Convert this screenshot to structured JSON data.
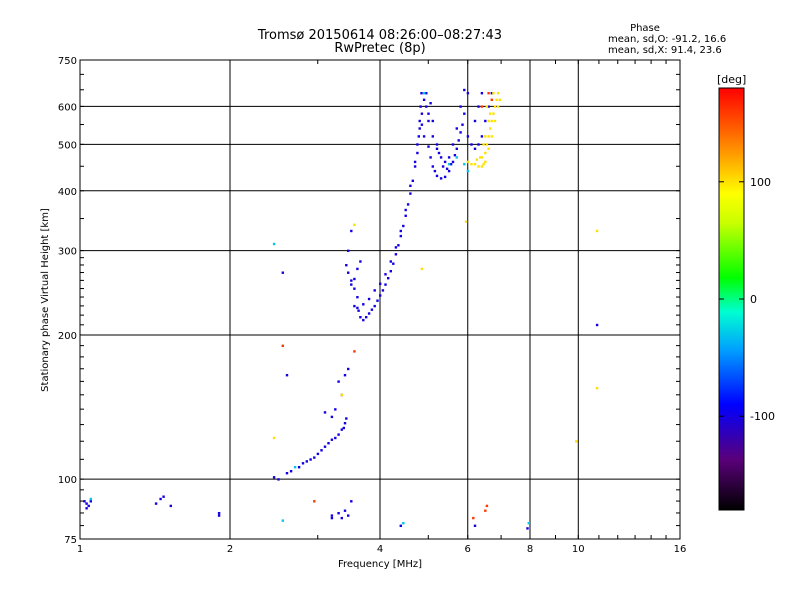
{
  "chart_data": {
    "type": "scatter",
    "title": "Tromsø 20150614 08:26:00–08:27:43",
    "subtitle": "RwPretec (8p)",
    "xlabel": "Frequency [MHz]",
    "ylabel": "Stationary phase Virtual Height [km]",
    "x_scale": "log",
    "y_scale": "log",
    "xlim": [
      1,
      16
    ],
    "ylim": [
      75,
      750
    ],
    "x_ticks": [
      1,
      2,
      4,
      6,
      8,
      10,
      16
    ],
    "x_tick_labels": [
      "1",
      "2",
      "4",
      "6",
      "8",
      "10",
      "16"
    ],
    "y_ticks": [
      75,
      100,
      200,
      300,
      400,
      500,
      600,
      750
    ],
    "y_tick_labels": [
      "75",
      "100",
      "200",
      "300",
      "400",
      "500",
      "600",
      "750"
    ],
    "grid": true,
    "phase_info": {
      "heading": "Phase",
      "o_line": "mean, sd,O: -91.2, 16.6",
      "x_line": "mean, sd,X:  91.4, 23.6"
    },
    "colorbar": {
      "label": "[deg]",
      "range": [
        -180,
        180
      ],
      "ticks": [
        100,
        0,
        -100
      ],
      "tick_labels": [
        "100",
        "0",
        "-100"
      ]
    },
    "series": [
      {
        "name": "",
        "color_deg": -100,
        "points": [
          [
            1.02,
            90
          ],
          [
            1.03,
            89
          ],
          [
            1.04,
            88
          ],
          [
            1.05,
            90
          ],
          [
            1.03,
            87
          ],
          [
            1.42,
            89
          ],
          [
            1.45,
            91
          ],
          [
            1.47,
            92
          ],
          [
            1.52,
            88
          ],
          [
            1.9,
            85
          ],
          [
            1.9,
            84
          ],
          [
            2.45,
            101
          ],
          [
            2.5,
            100
          ],
          [
            2.6,
            103
          ],
          [
            2.65,
            104
          ],
          [
            2.75,
            106
          ],
          [
            2.8,
            108
          ],
          [
            2.85,
            109
          ],
          [
            2.9,
            110
          ],
          [
            2.95,
            111
          ],
          [
            3.0,
            113
          ],
          [
            3.05,
            115
          ],
          [
            3.1,
            117
          ],
          [
            3.15,
            119
          ],
          [
            3.2,
            121
          ],
          [
            3.25,
            122
          ],
          [
            3.3,
            124
          ],
          [
            3.35,
            127
          ],
          [
            3.38,
            128
          ],
          [
            3.4,
            131
          ],
          [
            3.42,
            134
          ],
          [
            3.35,
            150
          ],
          [
            3.3,
            160
          ],
          [
            3.4,
            165
          ],
          [
            3.45,
            170
          ],
          [
            3.25,
            140
          ],
          [
            3.2,
            135
          ],
          [
            3.1,
            138
          ],
          [
            2.6,
            165
          ],
          [
            3.2,
            84
          ],
          [
            3.3,
            85
          ],
          [
            3.35,
            83
          ],
          [
            3.4,
            86
          ],
          [
            3.45,
            84
          ],
          [
            3.5,
            90
          ],
          [
            3.2,
            83
          ],
          [
            2.55,
            270
          ],
          [
            3.5,
            330
          ],
          [
            3.45,
            300
          ],
          [
            3.42,
            280
          ],
          [
            3.45,
            270
          ],
          [
            3.5,
            260
          ],
          [
            3.55,
            250
          ],
          [
            3.6,
            240
          ],
          [
            3.62,
            225
          ],
          [
            3.65,
            218
          ],
          [
            3.7,
            215
          ],
          [
            3.75,
            218
          ],
          [
            3.8,
            222
          ],
          [
            3.85,
            226
          ],
          [
            3.9,
            230
          ],
          [
            3.95,
            236
          ],
          [
            4.0,
            242
          ],
          [
            4.05,
            248
          ],
          [
            4.1,
            255
          ],
          [
            4.15,
            263
          ],
          [
            4.2,
            272
          ],
          [
            4.25,
            282
          ],
          [
            4.3,
            295
          ],
          [
            4.35,
            308
          ],
          [
            4.4,
            322
          ],
          [
            4.45,
            338
          ],
          [
            4.5,
            355
          ],
          [
            4.55,
            375
          ],
          [
            4.6,
            395
          ],
          [
            4.65,
            420
          ],
          [
            4.7,
            450
          ],
          [
            4.75,
            480
          ],
          [
            4.78,
            520
          ],
          [
            4.8,
            560
          ],
          [
            4.82,
            600
          ],
          [
            4.84,
            640
          ],
          [
            3.5,
            255
          ],
          [
            3.55,
            262
          ],
          [
            3.6,
            275
          ],
          [
            3.65,
            285
          ],
          [
            3.55,
            230
          ],
          [
            3.6,
            228
          ],
          [
            3.7,
            232
          ],
          [
            3.8,
            238
          ],
          [
            3.9,
            248
          ],
          [
            4.0,
            256
          ],
          [
            4.1,
            268
          ],
          [
            4.2,
            285
          ],
          [
            4.3,
            305
          ],
          [
            4.4,
            330
          ],
          [
            4.5,
            365
          ],
          [
            4.6,
            410
          ],
          [
            4.7,
            460
          ],
          [
            4.75,
            500
          ],
          [
            4.8,
            540
          ],
          [
            4.85,
            580
          ],
          [
            4.9,
            620
          ],
          [
            4.95,
            640
          ],
          [
            4.85,
            550
          ],
          [
            4.9,
            520
          ],
          [
            5.0,
            495
          ],
          [
            5.05,
            470
          ],
          [
            5.1,
            450
          ],
          [
            5.15,
            440
          ],
          [
            5.2,
            430
          ],
          [
            5.3,
            425
          ],
          [
            5.4,
            428
          ],
          [
            5.5,
            440
          ],
          [
            5.6,
            460
          ],
          [
            5.7,
            490
          ],
          [
            5.8,
            530
          ],
          [
            5.9,
            580
          ],
          [
            6.0,
            640
          ],
          [
            5.0,
            560
          ],
          [
            5.1,
            520
          ],
          [
            5.2,
            490
          ],
          [
            5.3,
            470
          ],
          [
            5.4,
            460
          ],
          [
            5.5,
            470
          ],
          [
            5.6,
            500
          ],
          [
            5.7,
            540
          ],
          [
            5.8,
            600
          ],
          [
            5.9,
            650
          ],
          [
            4.95,
            600
          ],
          [
            5.0,
            580
          ],
          [
            5.05,
            610
          ],
          [
            5.1,
            560
          ],
          [
            5.2,
            500
          ],
          [
            5.25,
            480
          ],
          [
            5.35,
            450
          ],
          [
            5.45,
            445
          ],
          [
            5.55,
            455
          ],
          [
            5.65,
            475
          ],
          [
            5.75,
            510
          ],
          [
            5.85,
            550
          ],
          [
            6.0,
            520
          ],
          [
            6.1,
            500
          ],
          [
            6.2,
            490
          ],
          [
            6.3,
            500
          ],
          [
            6.4,
            520
          ],
          [
            6.5,
            560
          ],
          [
            6.6,
            600
          ],
          [
            6.7,
            640
          ],
          [
            6.2,
            560
          ],
          [
            6.3,
            600
          ],
          [
            6.4,
            640
          ],
          [
            4.4,
            80
          ],
          [
            6.2,
            80
          ],
          [
            7.9,
            79
          ],
          [
            10.9,
            210
          ]
        ]
      },
      {
        "name": "",
        "color_deg": 100,
        "points": [
          [
            6.4,
            470
          ],
          [
            6.5,
            480
          ],
          [
            6.55,
            500
          ],
          [
            6.6,
            520
          ],
          [
            6.65,
            540
          ],
          [
            6.7,
            560
          ],
          [
            6.75,
            580
          ],
          [
            6.8,
            600
          ],
          [
            6.85,
            620
          ],
          [
            6.9,
            640
          ],
          [
            6.5,
            460
          ],
          [
            6.45,
            455
          ],
          [
            6.4,
            450
          ],
          [
            6.3,
            450
          ],
          [
            6.2,
            455
          ],
          [
            6.1,
            455
          ],
          [
            6.0,
            460
          ],
          [
            6.6,
            490
          ],
          [
            6.7,
            520
          ],
          [
            6.8,
            560
          ],
          [
            6.9,
            600
          ],
          [
            6.95,
            620
          ],
          [
            6.75,
            640
          ],
          [
            6.55,
            600
          ],
          [
            6.6,
            560
          ],
          [
            6.65,
            580
          ],
          [
            6.5,
            520
          ],
          [
            6.45,
            500
          ],
          [
            6.35,
            470
          ],
          [
            6.25,
            465
          ],
          [
            3.55,
            340
          ],
          [
            4.85,
            275
          ],
          [
            5.95,
            345
          ],
          [
            3.35,
            150
          ],
          [
            2.45,
            122
          ],
          [
            9.9,
            120
          ],
          [
            10.9,
            155
          ],
          [
            10.9,
            330
          ]
        ]
      },
      {
        "name": "",
        "color_deg": 160,
        "points": [
          [
            2.55,
            190
          ],
          [
            3.55,
            185
          ],
          [
            2.95,
            90
          ],
          [
            6.15,
            83
          ],
          [
            6.5,
            86
          ],
          [
            6.55,
            88
          ],
          [
            6.6,
            640
          ],
          [
            6.4,
            600
          ],
          [
            6.7,
            620
          ]
        ]
      },
      {
        "name": "",
        "color_deg": -30,
        "points": [
          [
            2.45,
            310
          ],
          [
            2.7,
            106
          ],
          [
            2.55,
            82
          ],
          [
            1.05,
            91
          ],
          [
            4.45,
            81
          ],
          [
            7.95,
            81
          ],
          [
            5.7,
            470
          ],
          [
            5.9,
            455
          ],
          [
            6.0,
            440
          ],
          [
            5.5,
            455
          ],
          [
            4.9,
            640
          ]
        ]
      }
    ]
  }
}
